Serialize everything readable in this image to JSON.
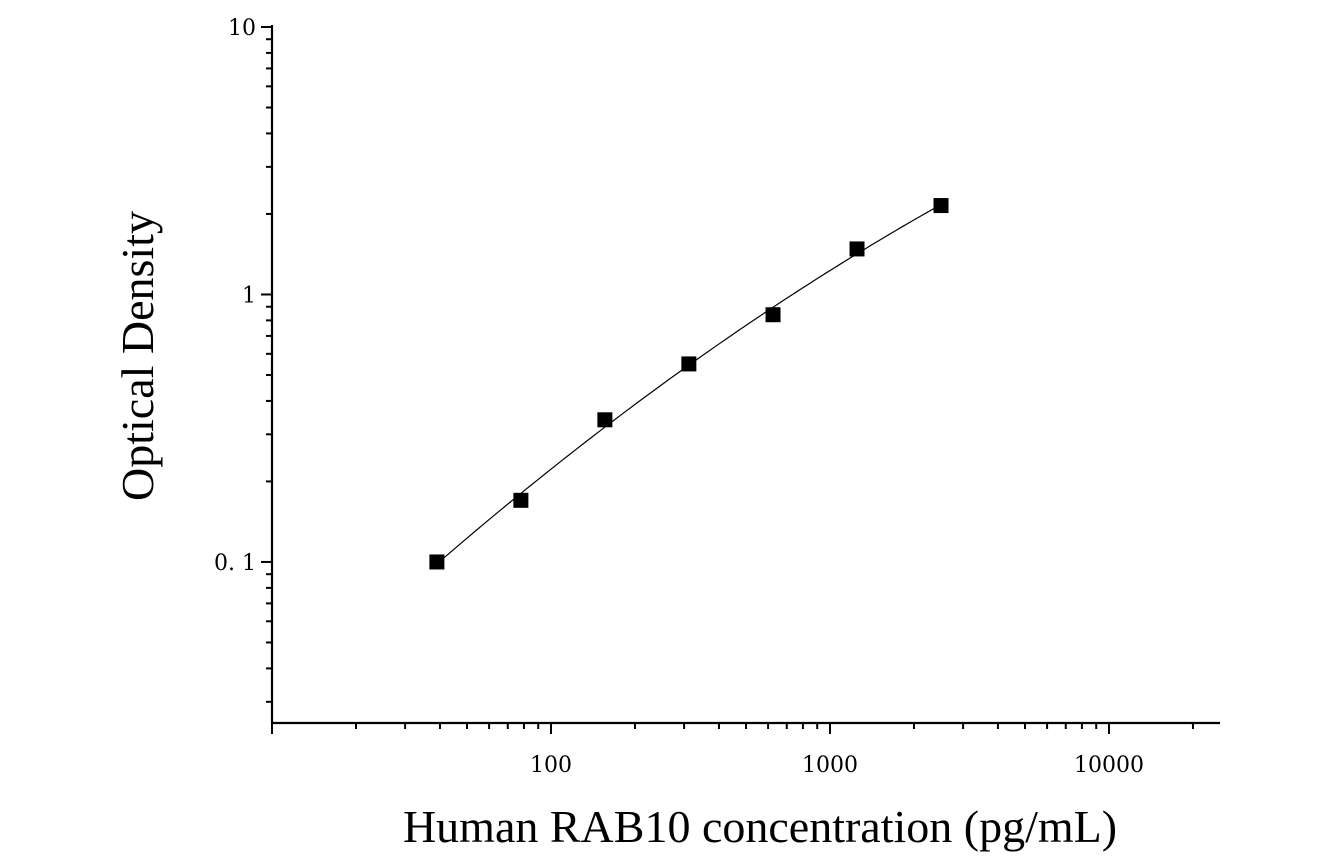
{
  "chart_data": {
    "type": "scatter",
    "xlabel": "Human RAB10 concentration (pg/mL)",
    "ylabel": "Optical Density",
    "x_scale": "log",
    "y_scale": "log",
    "xlim": [
      10,
      25000
    ],
    "ylim": [
      0.025,
      10
    ],
    "x_tick_labels": [
      "100",
      "1000",
      "10000"
    ],
    "y_tick_labels": [
      "0. 1",
      "1",
      "10"
    ],
    "grid": false,
    "series": [
      {
        "x": [
          39,
          78,
          156,
          312,
          625,
          1250,
          2500
        ],
        "y": [
          0.1,
          0.17,
          0.34,
          0.55,
          0.84,
          1.48,
          2.15
        ]
      }
    ],
    "fit_curve": true,
    "colors": {
      "marker": "#000000",
      "curve": "#000000",
      "axis": "#000000"
    }
  }
}
